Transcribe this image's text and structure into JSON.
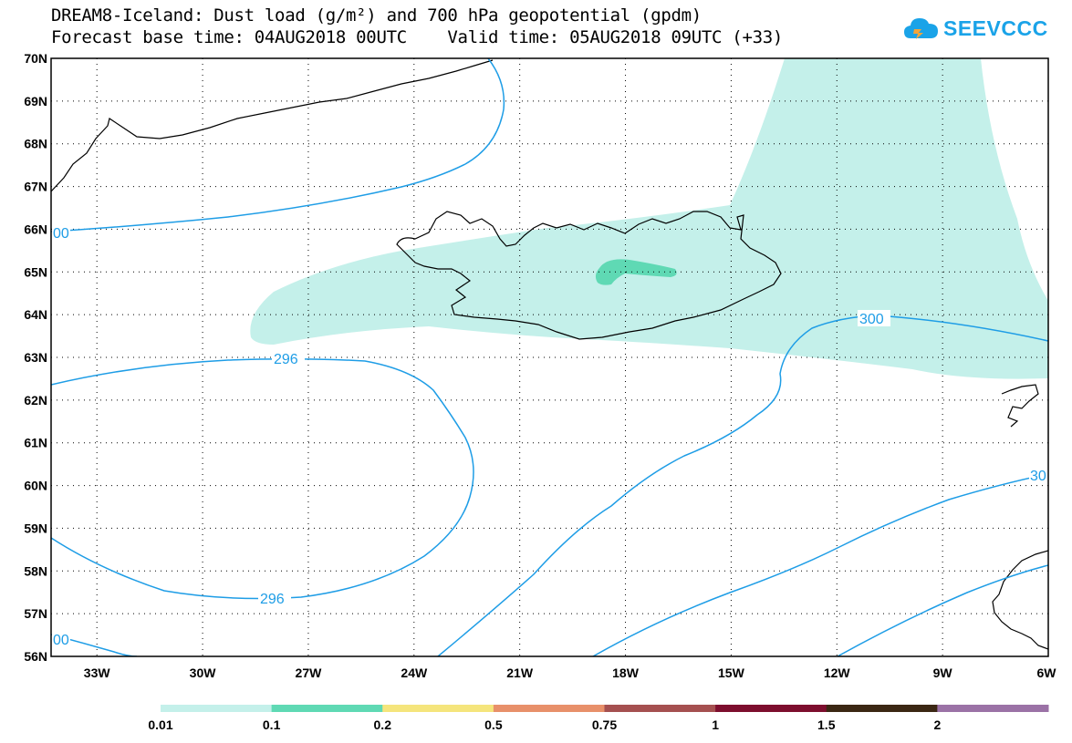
{
  "title_line1": "DREAM8-Iceland: Dust load (g/m²) and 700 hPa geopotential (gpdm)",
  "title_line2": "Forecast base time: 04AUG2018 00UTC    Valid time: 05AUG2018 09UTC (+33)",
  "logo_text": "SEEVCCC",
  "lat_labels": [
    "70N",
    "69N",
    "68N",
    "67N",
    "66N",
    "65N",
    "64N",
    "63N",
    "62N",
    "61N",
    "60N",
    "59N",
    "58N",
    "57N",
    "56N"
  ],
  "lon_labels": [
    "33W",
    "30W",
    "27W",
    "24W",
    "21W",
    "18W",
    "15W",
    "12W",
    "9W",
    "6W"
  ],
  "contour_labels": [
    {
      "text": "300",
      "key": "c300a"
    },
    {
      "text": "296",
      "key": "c296a"
    },
    {
      "text": "296",
      "key": "c296b"
    },
    {
      "text": "00",
      "key": "c300left"
    },
    {
      "text": "00",
      "key": "c300bl"
    },
    {
      "text": "30",
      "key": "c300r"
    }
  ],
  "colorbar": {
    "colors": [
      "#c4f0ea",
      "#5fd9b4",
      "#f5e57c",
      "#e8906a",
      "#a55050",
      "#7d0e2e",
      "#3b2713",
      "#9b72a6"
    ],
    "labels": [
      "0.01",
      "0.1",
      "0.2",
      "0.5",
      "0.75",
      "1",
      "1.5",
      "2"
    ]
  },
  "colors": {
    "dust_light": "#c4f0ea",
    "dust_medium": "#5fd9b4",
    "contour": "#1e9de6",
    "logo": "#1aa3e8"
  }
}
